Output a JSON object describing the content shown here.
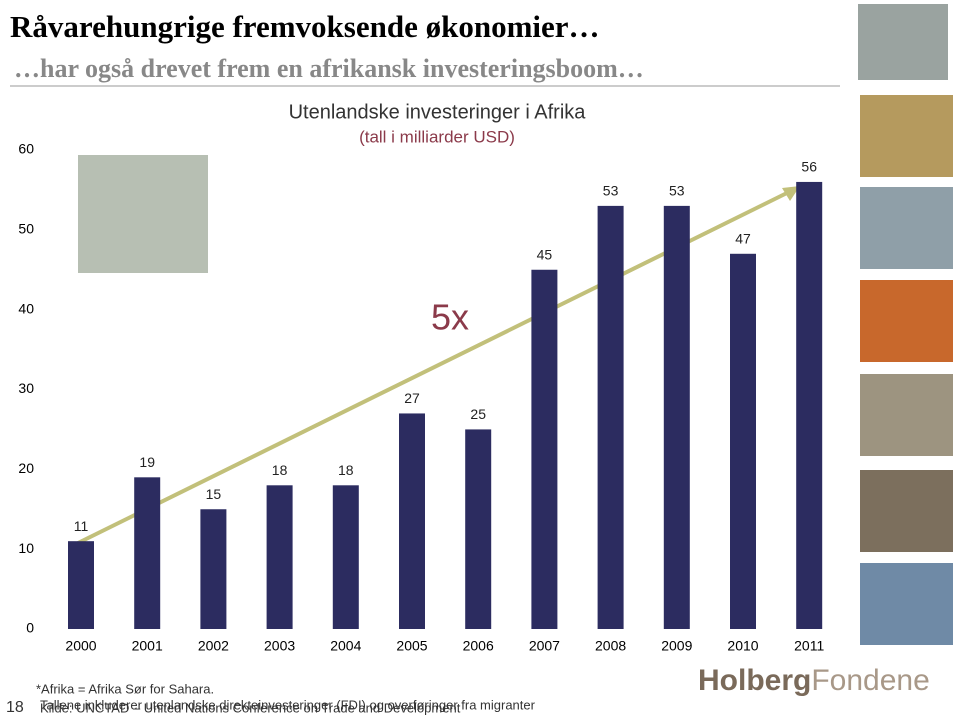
{
  "header": {
    "title": "Råvarehungrige fremvoksende økonomier…",
    "subtitle": "…har også drevet frem en afrikansk investeringsboom…"
  },
  "chart_data": {
    "type": "bar",
    "title": "Utenlandske investeringer i Afrika",
    "subtitle": "(tall i milliarder USD)",
    "annotation": "5x",
    "categories": [
      "2000",
      "2001",
      "2002",
      "2003",
      "2004",
      "2005",
      "2006",
      "2007",
      "2008",
      "2009",
      "2010",
      "2011"
    ],
    "values": [
      11,
      19,
      15,
      18,
      18,
      27,
      25,
      45,
      53,
      53,
      47,
      56
    ],
    "color": "#2c2c60",
    "ylim": [
      0,
      60
    ],
    "yticks": [
      0,
      10,
      20,
      30,
      40,
      50,
      60
    ]
  },
  "footnotes": [
    "*Afrika = Afrika Sør for Sahara.",
    "Tallene inkluderer utenlandske direkteinvesteringer (FDI) og overføringer fra migranter",
    "Kilde: UNCTAD – United Nations Conference on Trade and Development"
  ],
  "page_number": "18",
  "logo": [
    "Holberg",
    "Fondene"
  ]
}
